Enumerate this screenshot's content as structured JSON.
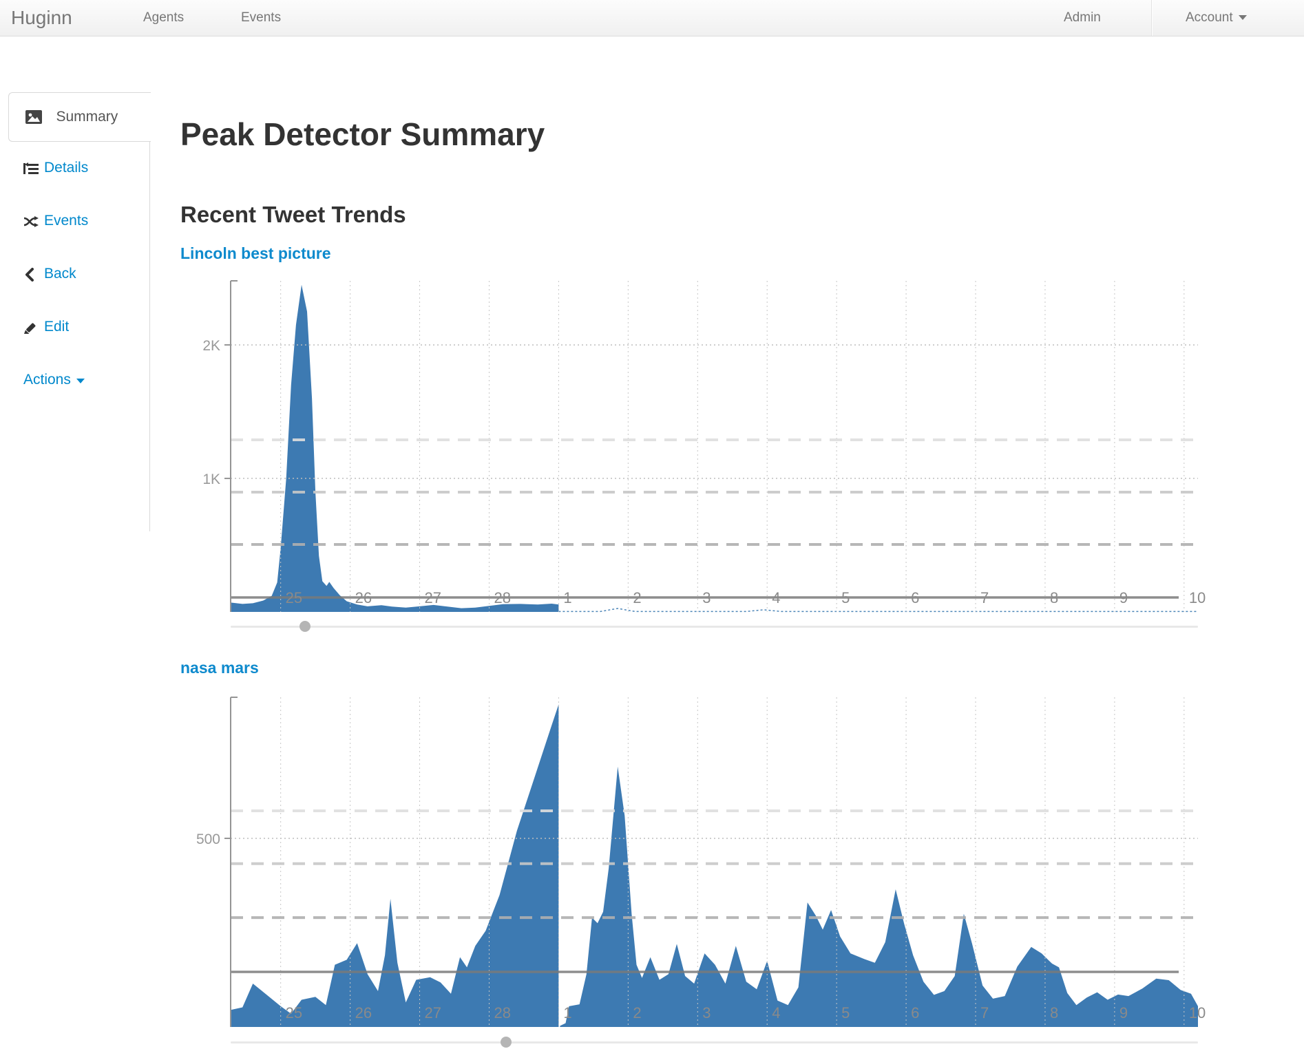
{
  "navbar": {
    "brand": "Huginn",
    "items": [
      {
        "label": "Agents"
      },
      {
        "label": "Events"
      }
    ],
    "right_items": [
      {
        "label": "Admin"
      },
      {
        "label": "Account"
      }
    ]
  },
  "sidebar": {
    "items": [
      {
        "label": "Summary",
        "icon": "picture-icon",
        "active": true
      },
      {
        "label": "Details",
        "icon": "details-icon"
      },
      {
        "label": "Events",
        "icon": "shuffle-icon"
      },
      {
        "label": "Back",
        "icon": "chevron-left-icon"
      },
      {
        "label": "Edit",
        "icon": "pencil-icon"
      },
      {
        "label": "Actions",
        "icon": "caret-down-icon"
      }
    ]
  },
  "main": {
    "title": "Peak Detector Summary",
    "section_title": "Recent Tweet Trends"
  },
  "colors": {
    "link_blue": "#0088cc",
    "chart_title_blue": "#0e8acd",
    "area_blue": "#3d7ab2",
    "heading": "#333333",
    "nav_text": "#777777",
    "axis_gray": "#949494",
    "average_line": "#7a7a7a"
  },
  "chart_data": [
    {
      "type": "area",
      "title": "Lincoln best picture",
      "x_ticks": [
        {
          "pos": 25,
          "label": "25"
        },
        {
          "pos": 26,
          "label": "26"
        },
        {
          "pos": 27,
          "label": "27"
        },
        {
          "pos": 28,
          "label": "28"
        },
        {
          "pos": 29,
          "label": "1"
        },
        {
          "pos": 30,
          "label": "2"
        },
        {
          "pos": 31,
          "label": "3"
        },
        {
          "pos": 32,
          "label": "4"
        },
        {
          "pos": 33,
          "label": "5"
        },
        {
          "pos": 34,
          "label": "6"
        },
        {
          "pos": 35,
          "label": "7"
        },
        {
          "pos": 36,
          "label": "8"
        },
        {
          "pos": 37,
          "label": "9"
        },
        {
          "pos": 38,
          "label": "10"
        }
      ],
      "y_ticks": [
        {
          "value": 1000,
          "label": "1K"
        },
        {
          "value": 2000,
          "label": "2K"
        }
      ],
      "xlim": [
        24.28,
        38.2
      ],
      "ylim": [
        0,
        2480
      ],
      "average_line": 108,
      "threshold_lines": [
        {
          "value": 1289,
          "tone": "light"
        },
        {
          "value": 897,
          "tone": "medium"
        },
        {
          "value": 505,
          "tone": "dark"
        }
      ],
      "slider_pct": 7.7,
      "segments": [
        {
          "style": "area",
          "points": [
            [
              24.28,
              70
            ],
            [
              24.45,
              60
            ],
            [
              24.6,
              65
            ],
            [
              24.75,
              85
            ],
            [
              24.87,
              120
            ],
            [
              24.95,
              220
            ],
            [
              25.0,
              480
            ],
            [
              25.08,
              1000
            ],
            [
              25.15,
              1700
            ],
            [
              25.22,
              2150
            ],
            [
              25.3,
              2450
            ],
            [
              25.38,
              2250
            ],
            [
              25.45,
              1600
            ],
            [
              25.5,
              900
            ],
            [
              25.55,
              420
            ],
            [
              25.6,
              230
            ],
            [
              25.66,
              195
            ],
            [
              25.7,
              225
            ],
            [
              25.76,
              180
            ],
            [
              25.85,
              125
            ],
            [
              25.95,
              80
            ],
            [
              26.1,
              55
            ],
            [
              26.25,
              42
            ],
            [
              26.45,
              50
            ],
            [
              26.6,
              40
            ],
            [
              26.8,
              32
            ],
            [
              27.0,
              42
            ],
            [
              27.2,
              52
            ],
            [
              27.4,
              40
            ],
            [
              27.6,
              28
            ],
            [
              27.8,
              32
            ],
            [
              28.0,
              45
            ],
            [
              28.2,
              58
            ],
            [
              28.45,
              60
            ],
            [
              28.7,
              55
            ],
            [
              28.9,
              62
            ],
            [
              29.0,
              55
            ]
          ]
        },
        {
          "style": "dashed-line",
          "points": [
            [
              29.0,
              3
            ],
            [
              29.6,
              3
            ],
            [
              29.85,
              26
            ],
            [
              30.1,
              3
            ],
            [
              31.7,
              3
            ],
            [
              31.95,
              16
            ],
            [
              32.2,
              3
            ],
            [
              38.2,
              3
            ]
          ]
        }
      ]
    },
    {
      "type": "area",
      "title": "nasa mars",
      "x_ticks": [
        {
          "pos": 25,
          "label": "25"
        },
        {
          "pos": 26,
          "label": "26"
        },
        {
          "pos": 27,
          "label": "27"
        },
        {
          "pos": 28,
          "label": "28"
        },
        {
          "pos": 29,
          "label": "1"
        },
        {
          "pos": 30,
          "label": "2"
        },
        {
          "pos": 31,
          "label": "3"
        },
        {
          "pos": 32,
          "label": "4"
        },
        {
          "pos": 33,
          "label": "5"
        },
        {
          "pos": 34,
          "label": "6"
        },
        {
          "pos": 35,
          "label": "7"
        },
        {
          "pos": 36,
          "label": "8"
        },
        {
          "pos": 37,
          "label": "9"
        },
        {
          "pos": 38,
          "label": "10"
        }
      ],
      "y_ticks": [
        {
          "value": 500,
          "label": "500"
        }
      ],
      "xlim": [
        24.28,
        38.2
      ],
      "ylim": [
        0,
        874
      ],
      "average_line": 146,
      "threshold_lines": [
        {
          "value": 573,
          "tone": "light"
        },
        {
          "value": 433,
          "tone": "medium"
        },
        {
          "value": 290,
          "tone": "dark"
        }
      ],
      "slider_pct": 28.5,
      "segments": [
        {
          "style": "area",
          "points": [
            [
              24.28,
              45
            ],
            [
              24.45,
              52
            ],
            [
              24.6,
              115
            ],
            [
              24.8,
              85
            ],
            [
              25.0,
              55
            ],
            [
              25.15,
              35
            ],
            [
              25.3,
              72
            ],
            [
              25.5,
              80
            ],
            [
              25.65,
              58
            ],
            [
              25.78,
              165
            ],
            [
              25.95,
              178
            ],
            [
              26.1,
              222
            ],
            [
              26.25,
              140
            ],
            [
              26.4,
              95
            ],
            [
              26.5,
              190
            ],
            [
              26.58,
              340
            ],
            [
              26.68,
              170
            ],
            [
              26.8,
              65
            ],
            [
              26.95,
              125
            ],
            [
              27.15,
              132
            ],
            [
              27.3,
              118
            ],
            [
              27.45,
              88
            ],
            [
              27.58,
              185
            ],
            [
              27.68,
              158
            ],
            [
              27.8,
              215
            ],
            [
              27.95,
              255
            ],
            [
              28.15,
              350
            ],
            [
              28.4,
              520
            ],
            [
              28.65,
              660
            ],
            [
              28.9,
              800
            ],
            [
              29.0,
              855
            ]
          ]
        },
        {
          "style": "area",
          "points": [
            [
              29.02,
              3
            ],
            [
              29.1,
              10
            ],
            [
              29.15,
              55
            ],
            [
              29.3,
              60
            ],
            [
              29.4,
              140
            ],
            [
              29.48,
              290
            ],
            [
              29.56,
              275
            ],
            [
              29.64,
              305
            ],
            [
              29.72,
              420
            ],
            [
              29.85,
              690
            ],
            [
              29.95,
              560
            ],
            [
              30.05,
              300
            ],
            [
              30.12,
              165
            ],
            [
              30.2,
              130
            ],
            [
              30.32,
              185
            ],
            [
              30.45,
              125
            ],
            [
              30.58,
              140
            ],
            [
              30.7,
              220
            ],
            [
              30.82,
              135
            ],
            [
              30.95,
              115
            ],
            [
              31.1,
              195
            ],
            [
              31.25,
              165
            ],
            [
              31.4,
              115
            ],
            [
              31.55,
              215
            ],
            [
              31.7,
              120
            ],
            [
              31.85,
              100
            ],
            [
              32.0,
              175
            ],
            [
              32.15,
              70
            ],
            [
              32.3,
              58
            ],
            [
              32.45,
              105
            ],
            [
              32.58,
              330
            ],
            [
              32.7,
              295
            ],
            [
              32.8,
              258
            ],
            [
              32.92,
              310
            ],
            [
              33.05,
              240
            ],
            [
              33.2,
              195
            ],
            [
              33.4,
              180
            ],
            [
              33.55,
              170
            ],
            [
              33.7,
              225
            ],
            [
              33.85,
              365
            ],
            [
              33.97,
              275
            ],
            [
              34.1,
              190
            ],
            [
              34.25,
              120
            ],
            [
              34.4,
              85
            ],
            [
              34.55,
              95
            ],
            [
              34.7,
              135
            ],
            [
              34.83,
              300
            ],
            [
              34.95,
              220
            ],
            [
              35.1,
              110
            ],
            [
              35.25,
              75
            ],
            [
              35.42,
              82
            ],
            [
              35.6,
              160
            ],
            [
              35.8,
              212
            ],
            [
              35.95,
              195
            ],
            [
              36.1,
              168
            ],
            [
              36.2,
              158
            ],
            [
              36.32,
              90
            ],
            [
              36.45,
              58
            ],
            [
              36.6,
              78
            ],
            [
              36.75,
              92
            ],
            [
              36.9,
              72
            ],
            [
              37.05,
              86
            ],
            [
              37.2,
              82
            ],
            [
              37.4,
              102
            ],
            [
              37.6,
              128
            ],
            [
              37.78,
              124
            ],
            [
              37.95,
              98
            ],
            [
              38.1,
              88
            ],
            [
              38.2,
              55
            ]
          ]
        }
      ]
    }
  ]
}
